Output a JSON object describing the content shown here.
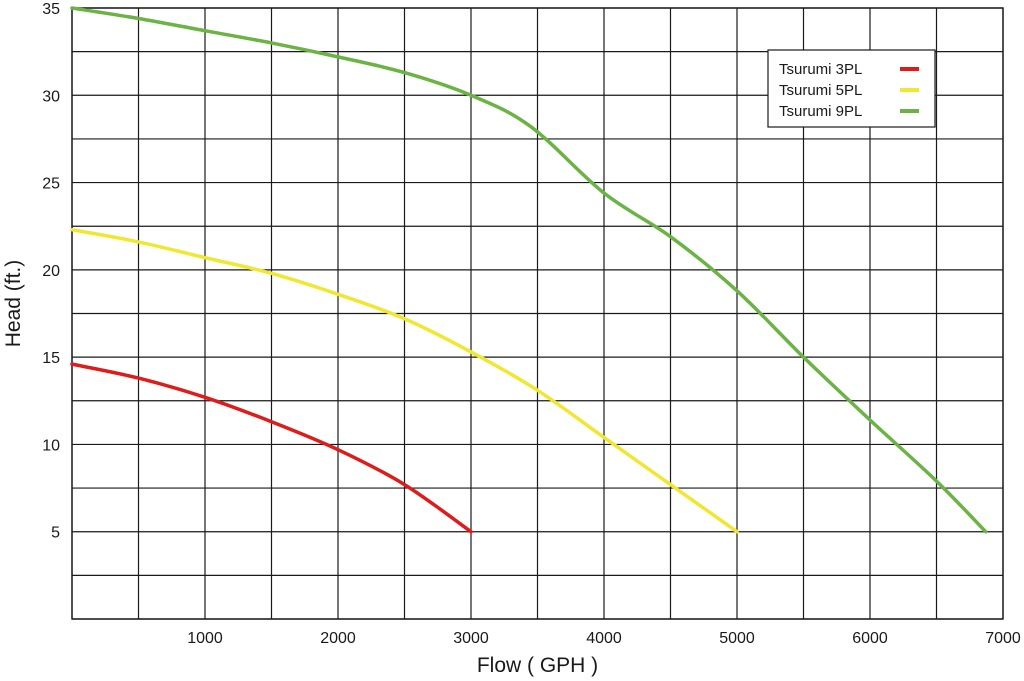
{
  "chart_data": {
    "type": "line",
    "title": "",
    "xlabel": "Flow ( GPH )",
    "ylabel": "Head (ft.)",
    "xlim": [
      0,
      7000
    ],
    "ylim": [
      0,
      35
    ],
    "x_gridlines": [
      0,
      500,
      1000,
      1500,
      2000,
      2500,
      3000,
      3500,
      4000,
      4500,
      5000,
      5500,
      6000,
      6500,
      7000
    ],
    "y_gridlines": [
      0,
      2.5,
      5,
      7.5,
      10,
      12.5,
      15,
      17.5,
      20,
      22.5,
      25,
      27.5,
      30,
      32.5,
      35
    ],
    "x_tick_labels": [
      "1000",
      "2000",
      "3000",
      "4000",
      "5000",
      "6000",
      "7000"
    ],
    "x_tick_values": [
      1000,
      2000,
      3000,
      4000,
      5000,
      6000,
      7000
    ],
    "y_tick_labels": [
      "5",
      "10",
      "15",
      "20",
      "25",
      "30",
      "35"
    ],
    "y_tick_values": [
      5,
      10,
      15,
      20,
      25,
      30,
      35
    ],
    "grid": true,
    "legend_position": "top-right",
    "series": [
      {
        "name": "Tsurumi  3PL",
        "color": "#dd1c1c",
        "x": [
          0,
          500,
          1000,
          1500,
          2000,
          2500,
          3000
        ],
        "y": [
          14.6,
          13.8,
          12.7,
          11.3,
          9.7,
          7.7,
          5.0
        ]
      },
      {
        "name": "Tsurumi  5PL",
        "color": "#f0e830",
        "x": [
          0,
          500,
          1000,
          1500,
          2000,
          2500,
          3000,
          3500,
          4000,
          4500,
          5000
        ],
        "y": [
          22.3,
          21.6,
          20.7,
          19.8,
          18.6,
          17.2,
          15.3,
          13.1,
          10.4,
          7.7,
          5.0
        ]
      },
      {
        "name": "Tsurumi  9PL",
        "color": "#6ab344",
        "x": [
          0,
          500,
          1000,
          1500,
          2000,
          2500,
          3000,
          3450,
          4000,
          4500,
          5000,
          5500,
          6000,
          6500,
          6870
        ],
        "y": [
          35.0,
          34.4,
          33.7,
          33.0,
          32.2,
          31.3,
          30.0,
          28.2,
          24.4,
          21.9,
          18.8,
          15.0,
          11.4,
          7.9,
          5.0
        ]
      }
    ]
  }
}
